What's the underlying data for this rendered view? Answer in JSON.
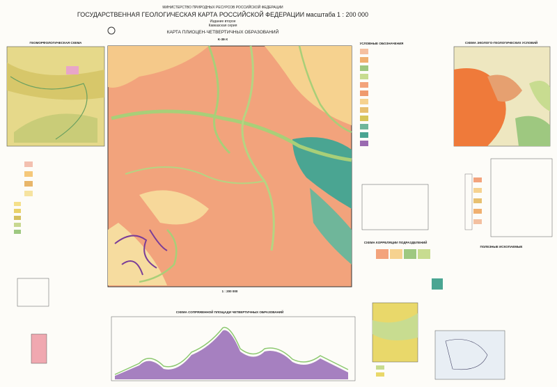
{
  "header": {
    "ministry": "МИНИСТЕРСТВО ПРИРОДНЫХ РЕСУРСОВ РОССИЙСКОЙ ФЕДЕРАЦИИ",
    "title": "ГОСУДАРСТВЕННАЯ ГЕОЛОГИЧЕСКАЯ КАРТА РОССИЙСКОЙ ФЕДЕРАЦИИ масштаба 1 : 200 000",
    "edition": "Издание второе",
    "series": "Кавказская серия",
    "map_title": "КАРТА ПЛИОЦЕН-ЧЕТВЕРТИЧНЫХ ОБРАЗОВАНИЙ",
    "sheet": "K-38-X"
  },
  "panels": {
    "left_inset": "ГЕОМОРФОЛОГИЧЕСКАЯ СХЕМА",
    "right_inset": "СХЕМА ЭКОЛОГО-ГЕОЛОГИЧЕСКИХ УСЛОВИЙ",
    "legend": "УСЛОВНЫЕ ОБОЗНАЧЕНИЯ",
    "correlation": "СХЕМА КОРРЕЛЯЦИИ ПОДРАЗДЕЛЕНИЙ",
    "scale": "1 : 200 000",
    "profile": "СХЕМА СОПРЯЖЕННОЙ ПЛОЩАДИ ЧЕТВЕРТИЧНЫХ ОБРАЗОВАНИЙ",
    "minerals": "ПОЛЕЗНЫЕ ИСКОПАЕМЫЕ"
  }
}
